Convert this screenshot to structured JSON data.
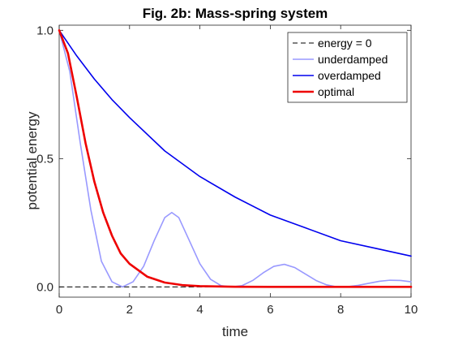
{
  "chart_data": {
    "type": "line",
    "title": "Fig. 2b: Mass-spring system",
    "xlabel": "time",
    "ylabel": "potential energy",
    "xlim": [
      0,
      10
    ],
    "ylim": [
      -0.04,
      1.02
    ],
    "xticks": [
      0,
      2,
      4,
      6,
      8,
      10
    ],
    "xtick_labels": [
      "0",
      "2",
      "4",
      "6",
      "8",
      "10"
    ],
    "yticks": [
      0,
      0.5,
      1
    ],
    "ytick_labels": [
      "0.0",
      "0.5",
      "1.0"
    ],
    "grid": false,
    "legend_position": "top-right",
    "series": [
      {
        "name": "energy = 0",
        "color": "#000000",
        "style": "dashed",
        "x": [
          0,
          10
        ],
        "y": [
          0,
          0
        ]
      },
      {
        "name": "underdamped",
        "color": "#9999ff",
        "style": "solid",
        "x": [
          0,
          0.3,
          0.6,
          0.9,
          1.2,
          1.5,
          1.8,
          2.1,
          2.4,
          2.7,
          3.0,
          3.2,
          3.4,
          3.7,
          4.0,
          4.3,
          4.6,
          4.9,
          5.2,
          5.5,
          5.8,
          6.1,
          6.4,
          6.7,
          7.0,
          7.3,
          7.6,
          7.9,
          8.2,
          8.5,
          8.8,
          9.1,
          9.4,
          9.7,
          10.0
        ],
        "y": [
          1.0,
          0.84,
          0.56,
          0.3,
          0.1,
          0.02,
          0.0,
          0.02,
          0.08,
          0.18,
          0.27,
          0.29,
          0.27,
          0.18,
          0.09,
          0.03,
          0.005,
          0.0,
          0.005,
          0.025,
          0.055,
          0.08,
          0.088,
          0.075,
          0.05,
          0.025,
          0.008,
          0.0,
          0.001,
          0.006,
          0.014,
          0.022,
          0.026,
          0.025,
          0.02
        ]
      },
      {
        "name": "overdamped",
        "color": "#0000ee",
        "style": "solid",
        "x": [
          0,
          0.5,
          1,
          1.5,
          2,
          3,
          4,
          5,
          6,
          7,
          8,
          9,
          10
        ],
        "y": [
          1.0,
          0.9,
          0.81,
          0.73,
          0.66,
          0.53,
          0.43,
          0.35,
          0.28,
          0.23,
          0.18,
          0.15,
          0.12
        ]
      },
      {
        "name": "optimal",
        "color": "#ee0000",
        "style": "solid",
        "x": [
          0,
          0.25,
          0.5,
          0.75,
          1.0,
          1.25,
          1.5,
          1.75,
          2.0,
          2.5,
          3.0,
          3.5,
          4.0,
          5.0,
          6.0,
          8.0,
          10.0
        ],
        "y": [
          1.0,
          0.91,
          0.74,
          0.56,
          0.41,
          0.29,
          0.2,
          0.13,
          0.09,
          0.04,
          0.017,
          0.007,
          0.003,
          0.0005,
          0.0,
          0.0,
          0.0
        ]
      }
    ]
  }
}
